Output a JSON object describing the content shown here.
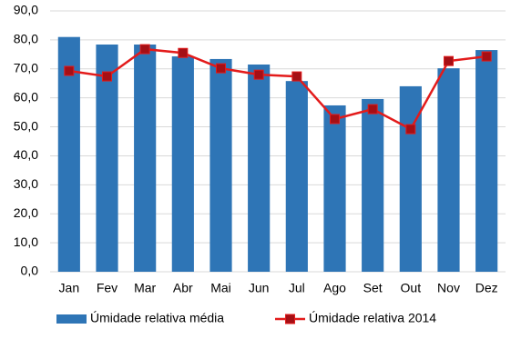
{
  "chart_data": {
    "type": "combo",
    "categories": [
      "Jan",
      "Fev",
      "Mar",
      "Abr",
      "Mai",
      "Jun",
      "Jul",
      "Ago",
      "Set",
      "Out",
      "Nov",
      "Dez"
    ],
    "series": [
      {
        "name": "Úmidade relativa média",
        "type": "bar",
        "color": "#2e75b6",
        "values": [
          81,
          78.4,
          78.4,
          74.3,
          73.4,
          71.5,
          65.8,
          57.4,
          59.6,
          64,
          70.2,
          76.5
        ]
      },
      {
        "name": "Úmidade relativa 2014",
        "type": "line",
        "color": "#e31b1b",
        "marker_color": "#a50f15",
        "values": [
          69.3,
          67.4,
          76.8,
          75.5,
          70.2,
          68,
          67.4,
          52.7,
          56.1,
          49.2,
          72.7,
          74.3
        ]
      }
    ],
    "ylim": [
      0,
      90
    ],
    "yticks": [
      {
        "value": 0,
        "label": "0,0"
      },
      {
        "value": 10,
        "label": "10,0"
      },
      {
        "value": 20,
        "label": "20,0"
      },
      {
        "value": 30,
        "label": "30,0"
      },
      {
        "value": 40,
        "label": "40,0"
      },
      {
        "value": 50,
        "label": "50,0"
      },
      {
        "value": 60,
        "label": "60,0"
      },
      {
        "value": 70,
        "label": "70,0"
      },
      {
        "value": 80,
        "label": "80,0"
      },
      {
        "value": 90,
        "label": "90,0"
      }
    ],
    "grid": true
  }
}
